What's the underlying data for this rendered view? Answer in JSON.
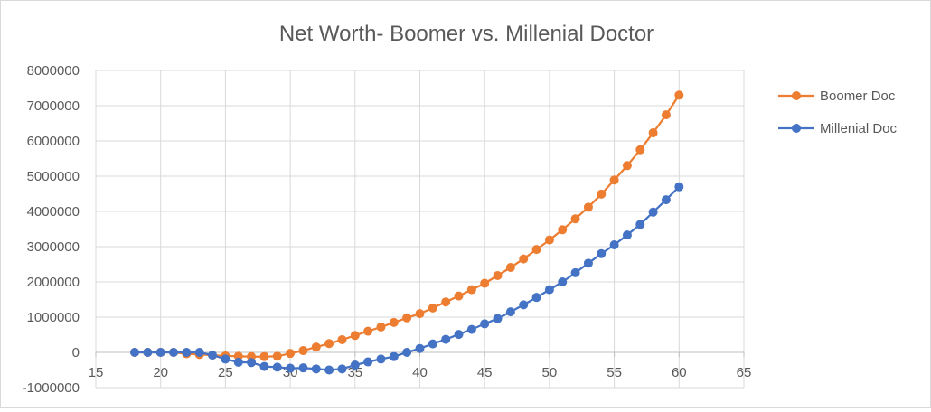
{
  "chart_data": {
    "type": "scatter",
    "title": "Net Worth- Boomer vs. Millenial Doctor",
    "xlabel": "",
    "ylabel": "",
    "xlim": [
      15,
      65
    ],
    "ylim": [
      -1000000,
      8000000
    ],
    "x_ticks": [
      15,
      20,
      25,
      30,
      35,
      40,
      45,
      50,
      55,
      60,
      65
    ],
    "y_ticks": [
      -1000000,
      0,
      1000000,
      2000000,
      3000000,
      4000000,
      5000000,
      6000000,
      7000000,
      8000000
    ],
    "grid": true,
    "legend_position": "right",
    "series": [
      {
        "name": "Boomer Doc",
        "color": "#ED7D31",
        "x": [
          18,
          19,
          20,
          21,
          22,
          23,
          24,
          25,
          26,
          27,
          28,
          29,
          30,
          31,
          32,
          33,
          34,
          35,
          36,
          37,
          38,
          39,
          40,
          41,
          42,
          43,
          44,
          45,
          46,
          47,
          48,
          49,
          50,
          51,
          52,
          53,
          54,
          55,
          56,
          57,
          58,
          59,
          60
        ],
        "values": [
          0,
          0,
          0,
          0,
          -40000,
          -60000,
          -80000,
          -100000,
          -110000,
          -120000,
          -120000,
          -110000,
          -30000,
          50000,
          150000,
          250000,
          360000,
          480000,
          600000,
          720000,
          850000,
          980000,
          1100000,
          1260000,
          1430000,
          1600000,
          1780000,
          1960000,
          2180000,
          2410000,
          2650000,
          2920000,
          3190000,
          3480000,
          3790000,
          4120000,
          4490000,
          4890000,
          5300000,
          5750000,
          6230000,
          6740000,
          7300000
        ]
      },
      {
        "name": "Millenial Doc",
        "color": "#4472C4",
        "x": [
          18,
          19,
          20,
          21,
          22,
          23,
          24,
          25,
          26,
          27,
          28,
          29,
          30,
          31,
          32,
          33,
          34,
          35,
          36,
          37,
          38,
          39,
          40,
          41,
          42,
          43,
          44,
          45,
          46,
          47,
          48,
          49,
          50,
          51,
          52,
          53,
          54,
          55,
          56,
          57,
          58,
          59,
          60
        ],
        "values": [
          0,
          0,
          0,
          0,
          0,
          0,
          -80000,
          -190000,
          -280000,
          -290000,
          -400000,
          -420000,
          -450000,
          -440000,
          -470000,
          -500000,
          -470000,
          -360000,
          -270000,
          -190000,
          -120000,
          0,
          110000,
          240000,
          370000,
          510000,
          650000,
          810000,
          960000,
          1150000,
          1350000,
          1560000,
          1780000,
          2000000,
          2260000,
          2530000,
          2800000,
          3050000,
          3330000,
          3630000,
          3980000,
          4330000,
          4700000
        ]
      }
    ]
  }
}
